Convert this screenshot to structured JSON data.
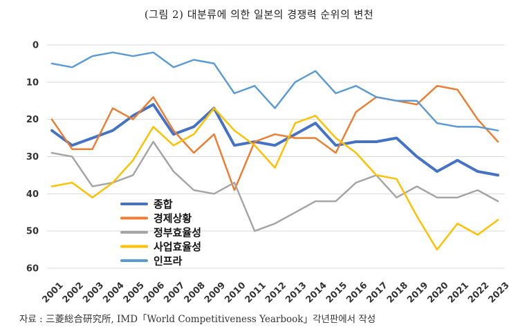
{
  "title": "(그림 2) 대분류에 의한 일본의 경쟁력 순위의 변천",
  "source": "자료 : 三菱総合研究所, IMD「World Competitiveness Yearbook」각년판에서 작성",
  "chart_data": {
    "type": "line",
    "title": "(그림 2) 대분류에 의한 일본의 경쟁력 순위의 변천",
    "xlabel": "",
    "ylabel": "",
    "y_inverted": true,
    "ylim": [
      0,
      60
    ],
    "yticks": [
      0,
      10,
      20,
      30,
      40,
      50,
      60
    ],
    "grid": "horizontal",
    "legend_position": "lower-left",
    "categories": [
      "2001",
      "2002",
      "2003",
      "2004",
      "2005",
      "2006",
      "2007",
      "2008",
      "2009",
      "2010",
      "2011",
      "2012",
      "2013",
      "2014",
      "2015",
      "2016",
      "2017",
      "2018",
      "2019",
      "2020",
      "2021",
      "2022",
      "2023"
    ],
    "series": [
      {
        "name": "종합",
        "color": "#4472C4",
        "width": 4,
        "values": [
          23,
          27,
          25,
          23,
          19,
          16,
          24,
          22,
          17,
          27,
          26,
          27,
          24,
          21,
          27,
          26,
          26,
          25,
          30,
          34,
          31,
          34,
          35
        ]
      },
      {
        "name": "경제상황",
        "color": "#ED7D31",
        "width": 2.5,
        "values": [
          20,
          28,
          28,
          17,
          20,
          14,
          23,
          29,
          24,
          39,
          26,
          24,
          25,
          25,
          29,
          18,
          14,
          15,
          16,
          11,
          12,
          20,
          26
        ]
      },
      {
        "name": "정부효율성",
        "color": "#A5A5A5",
        "width": 2.5,
        "values": [
          29,
          30,
          38,
          37,
          35,
          26,
          34,
          39,
          40,
          37,
          50,
          48,
          45,
          42,
          42,
          37,
          35,
          41,
          38,
          41,
          41,
          39,
          42
        ]
      },
      {
        "name": "사업효율성",
        "color": "#FFC000",
        "width": 2.5,
        "values": [
          38,
          37,
          41,
          37,
          31,
          22,
          27,
          24,
          17,
          23,
          27,
          33,
          21,
          19,
          25,
          29,
          35,
          36,
          46,
          55,
          48,
          51,
          47
        ]
      },
      {
        "name": "인프라",
        "color": "#5B9BD5",
        "width": 2.5,
        "values": [
          5,
          6,
          3,
          2,
          3,
          2,
          6,
          4,
          5,
          13,
          11,
          17,
          10,
          7,
          13,
          11,
          14,
          15,
          15,
          21,
          22,
          22,
          23
        ]
      }
    ]
  }
}
